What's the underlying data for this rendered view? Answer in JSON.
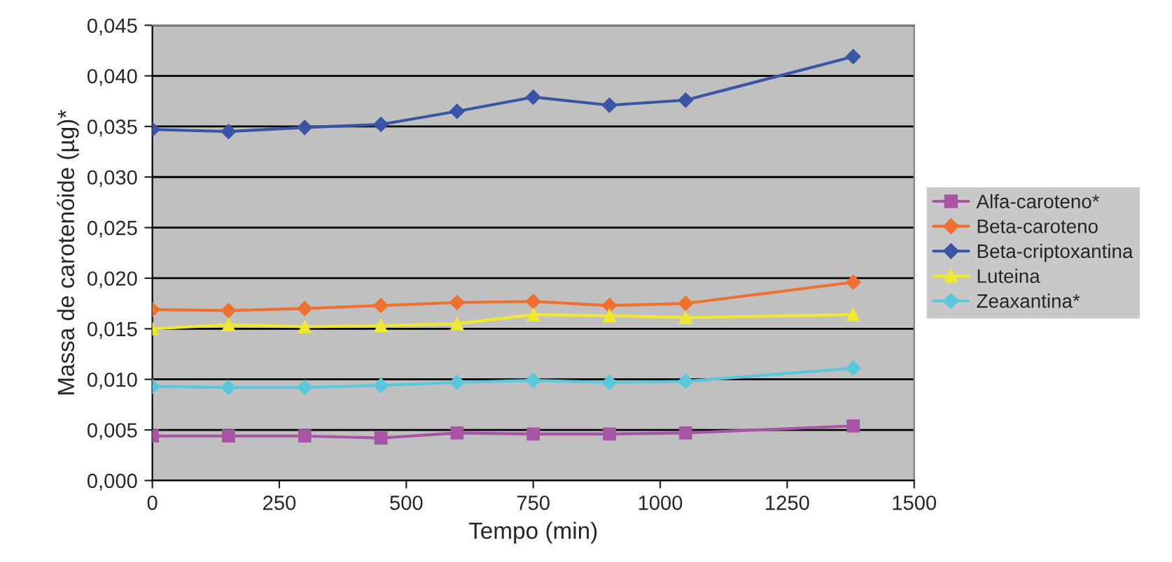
{
  "chart_data": {
    "type": "line",
    "xlabel": "Tempo (min)",
    "ylabel": "Massa de carotenóide (µg)*",
    "x": [
      0,
      150,
      300,
      450,
      600,
      750,
      900,
      1050,
      1380
    ],
    "series": [
      {
        "name": "Alfa-caroteno*",
        "color": "#a855a5",
        "marker": "square",
        "values": [
          0.0044,
          0.0044,
          0.0044,
          0.0042,
          0.0047,
          0.0046,
          0.0046,
          0.0047,
          0.0054
        ]
      },
      {
        "name": "Beta-caroteno",
        "color": "#f07030",
        "marker": "diamond",
        "values": [
          0.0169,
          0.0168,
          0.017,
          0.0173,
          0.0176,
          0.0177,
          0.0173,
          0.0175,
          0.0196
        ]
      },
      {
        "name": "Beta-criptoxantina",
        "color": "#3a55a5",
        "marker": "diamond",
        "values": [
          0.0347,
          0.0345,
          0.0349,
          0.0352,
          0.0365,
          0.0379,
          0.0371,
          0.0376,
          0.0419
        ]
      },
      {
        "name": "Luteina",
        "color": "#f0e830",
        "marker": "triangle",
        "values": [
          0.015,
          0.0154,
          0.0152,
          0.0153,
          0.0155,
          0.0164,
          0.0163,
          0.0161,
          0.0164
        ]
      },
      {
        "name": "Zeaxantina*",
        "color": "#5ac8dc",
        "marker": "diamond",
        "values": [
          0.0093,
          0.0092,
          0.0092,
          0.0094,
          0.0097,
          0.0099,
          0.0097,
          0.0098,
          0.0111
        ]
      }
    ],
    "xlim": [
      0,
      1500
    ],
    "xticks": [
      0,
      250,
      500,
      750,
      1000,
      1250,
      1500
    ],
    "ylim": [
      0,
      0.045
    ],
    "yticks": [
      {
        "value": 0,
        "label": "0,000"
      },
      {
        "value": 0.005,
        "label": "0,005"
      },
      {
        "value": 0.01,
        "label": "0,010"
      },
      {
        "value": 0.015,
        "label": "0,015"
      },
      {
        "value": 0.02,
        "label": "0,020"
      },
      {
        "value": 0.025,
        "label": "0,025"
      },
      {
        "value": 0.03,
        "label": "0,030"
      },
      {
        "value": 0.035,
        "label": "0,035"
      },
      {
        "value": 0.04,
        "label": "0,040"
      },
      {
        "value": 0.045,
        "label": "0,045"
      }
    ],
    "grid": "y",
    "legend": "right",
    "line_style": "solid"
  }
}
